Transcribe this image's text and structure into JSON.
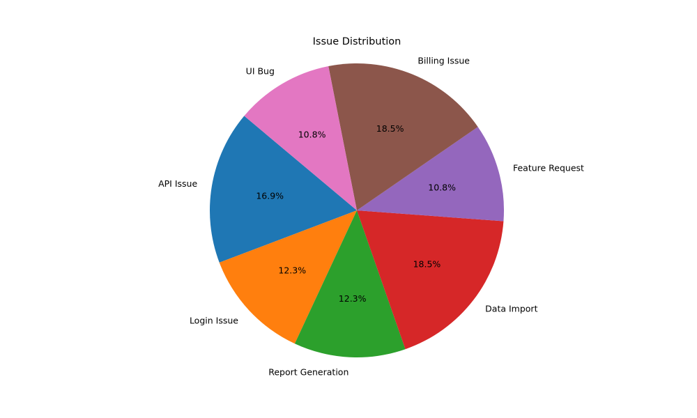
{
  "chart_data": {
    "type": "pie",
    "title": "Issue Distribution",
    "start_angle_deg": 140,
    "direction": "counterclockwise",
    "slices": [
      {
        "label": "API Issue",
        "value": 16.9,
        "pct_label": "16.9%",
        "color": "#1f77b4"
      },
      {
        "label": "Login Issue",
        "value": 12.3,
        "pct_label": "12.3%",
        "color": "#ff7f0e"
      },
      {
        "label": "Report Generation",
        "value": 12.3,
        "pct_label": "12.3%",
        "color": "#2ca02c"
      },
      {
        "label": "Data Import",
        "value": 18.5,
        "pct_label": "18.5%",
        "color": "#d62728"
      },
      {
        "label": "Feature Request",
        "value": 10.8,
        "pct_label": "10.8%",
        "color": "#9467bd"
      },
      {
        "label": "Billing Issue",
        "value": 18.5,
        "pct_label": "18.5%",
        "color": "#8c564b"
      },
      {
        "label": "UI Bug",
        "value": 10.8,
        "pct_label": "10.8%",
        "color": "#e377c2"
      }
    ]
  }
}
